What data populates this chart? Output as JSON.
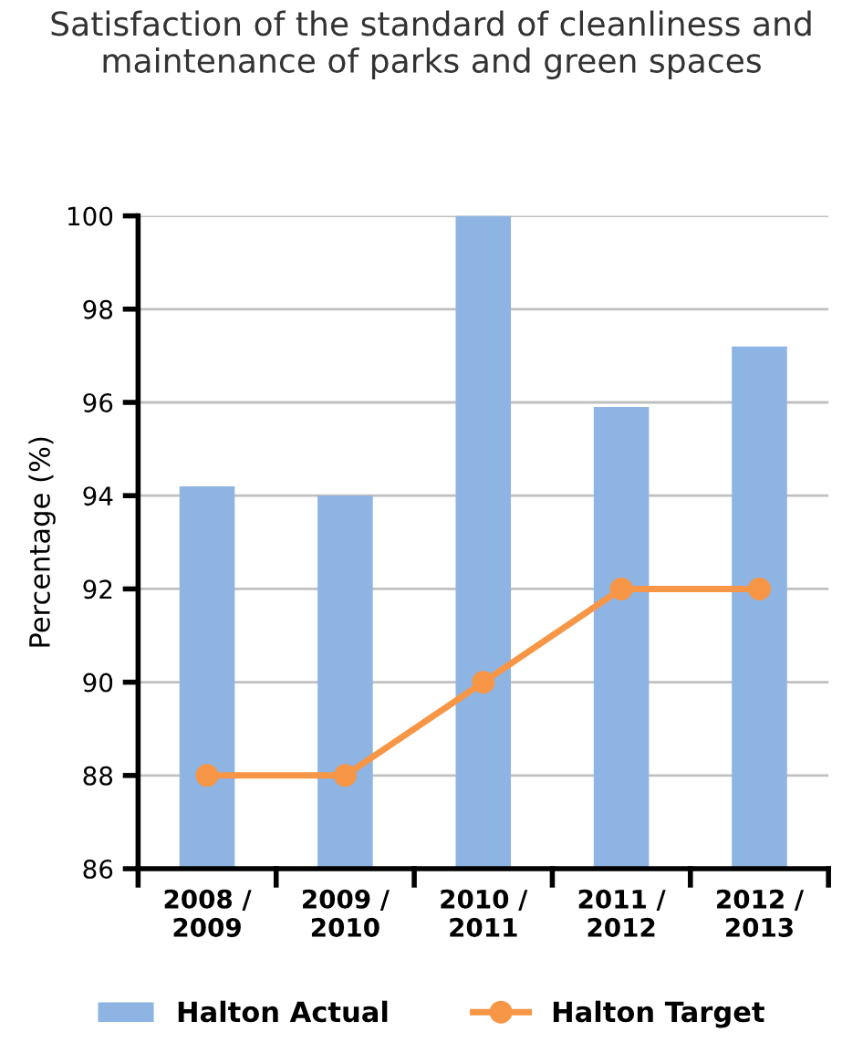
{
  "chart_data": {
    "type": "bar",
    "title": "Satisfaction of the standard of cleanliness and maintenance of parks and green spaces",
    "ylabel": "Percentage (%)",
    "categories": [
      "2008 /\n2009",
      "2009 /\n2010",
      "2010 /\n2011",
      "2011 /\n2012",
      "2012 /\n2013"
    ],
    "series": [
      {
        "name": "Halton Actual",
        "color": "#8eb4e3",
        "values": [
          94.2,
          94.0,
          100,
          95.9,
          97.2
        ]
      },
      {
        "name": "Halton Target",
        "type": "line",
        "color": "#f79646",
        "marker": "circle",
        "values": [
          88,
          88,
          90,
          92,
          92
        ]
      }
    ],
    "ylim": [
      86,
      100
    ],
    "yticks": [
      86,
      88,
      90,
      92,
      94,
      96,
      98,
      100
    ],
    "grid": "y",
    "legend": "bottom"
  }
}
